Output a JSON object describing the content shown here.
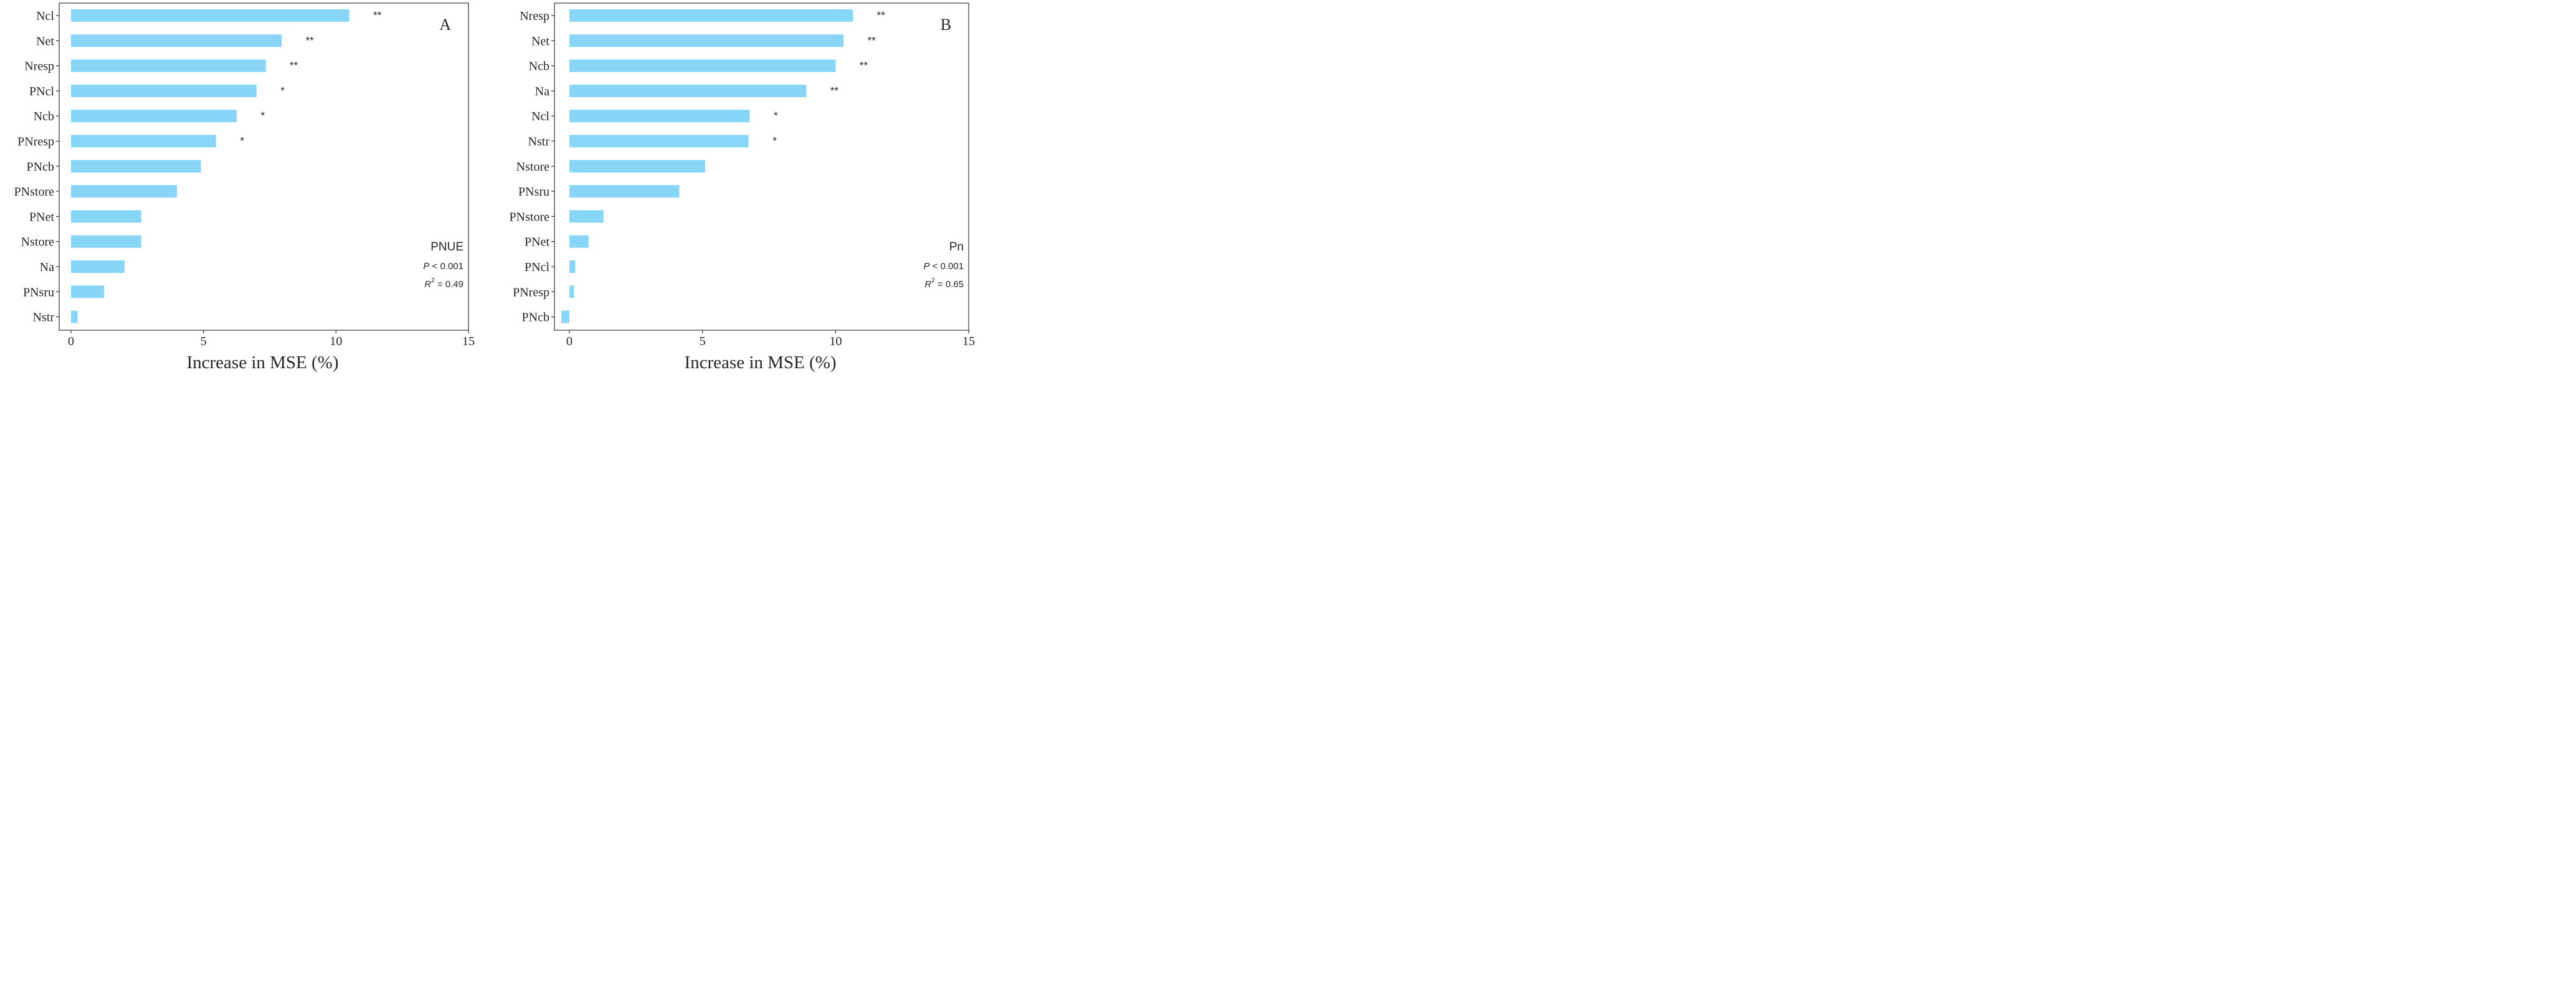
{
  "chart_data": [
    {
      "type": "bar",
      "orientation": "horizontal",
      "panel_label": "A",
      "categories": [
        "Ncl",
        "Net",
        "Nresp",
        "PNcl",
        "Ncb",
        "PNresp",
        "PNcb",
        "PNstore",
        "PNet",
        "Nstore",
        "Na",
        "PNsru",
        "Nstr"
      ],
      "values": [
        10.5,
        7.95,
        7.35,
        7.0,
        6.25,
        5.47,
        4.9,
        4.0,
        2.65,
        2.65,
        2.02,
        1.25,
        0.25
      ],
      "significance": [
        "**",
        "**",
        "**",
        "*",
        "*",
        "*",
        "",
        "",
        "",
        "",
        "",
        "",
        ""
      ],
      "xlabel": "Increase in MSE (%)",
      "xlim": [
        -0.2,
        15
      ],
      "xticks": [
        "0",
        "5",
        "10",
        "15"
      ],
      "bar_color": "#87d5f7",
      "grid": false,
      "stats": {
        "response": "PNUE",
        "p_symbol": "P",
        "p_text": " < 0.001",
        "r_symbol": "R",
        "r_exp": "2",
        "r_text": " = 0.49"
      }
    },
    {
      "type": "bar",
      "orientation": "horizontal",
      "panel_label": "B",
      "categories": [
        "Nresp",
        "Net",
        "Ncb",
        "Na",
        "Ncl",
        "Nstr",
        "Nstore",
        "PNsru",
        "PNstore",
        "PNet",
        "PNcl",
        "PNresp",
        "PNcb"
      ],
      "values": [
        10.65,
        10.3,
        10.0,
        8.9,
        6.77,
        6.73,
        5.1,
        4.13,
        1.28,
        0.72,
        0.22,
        0.17,
        -0.3
      ],
      "significance": [
        "**",
        "**",
        "**",
        "**",
        "*",
        "*",
        "",
        "",
        "",
        "",
        "",
        "",
        ""
      ],
      "xlabel": "Increase in MSE (%)",
      "xlim": [
        -0.9,
        15
      ],
      "xticks": [
        "0",
        "5",
        "10",
        "15"
      ],
      "bar_color": "#87d5f7",
      "grid": false,
      "stats": {
        "response": "Pn",
        "p_symbol": "P",
        "p_text": " < 0.001",
        "r_symbol": "R",
        "r_exp": "2",
        "r_text": " = 0.65"
      }
    }
  ]
}
